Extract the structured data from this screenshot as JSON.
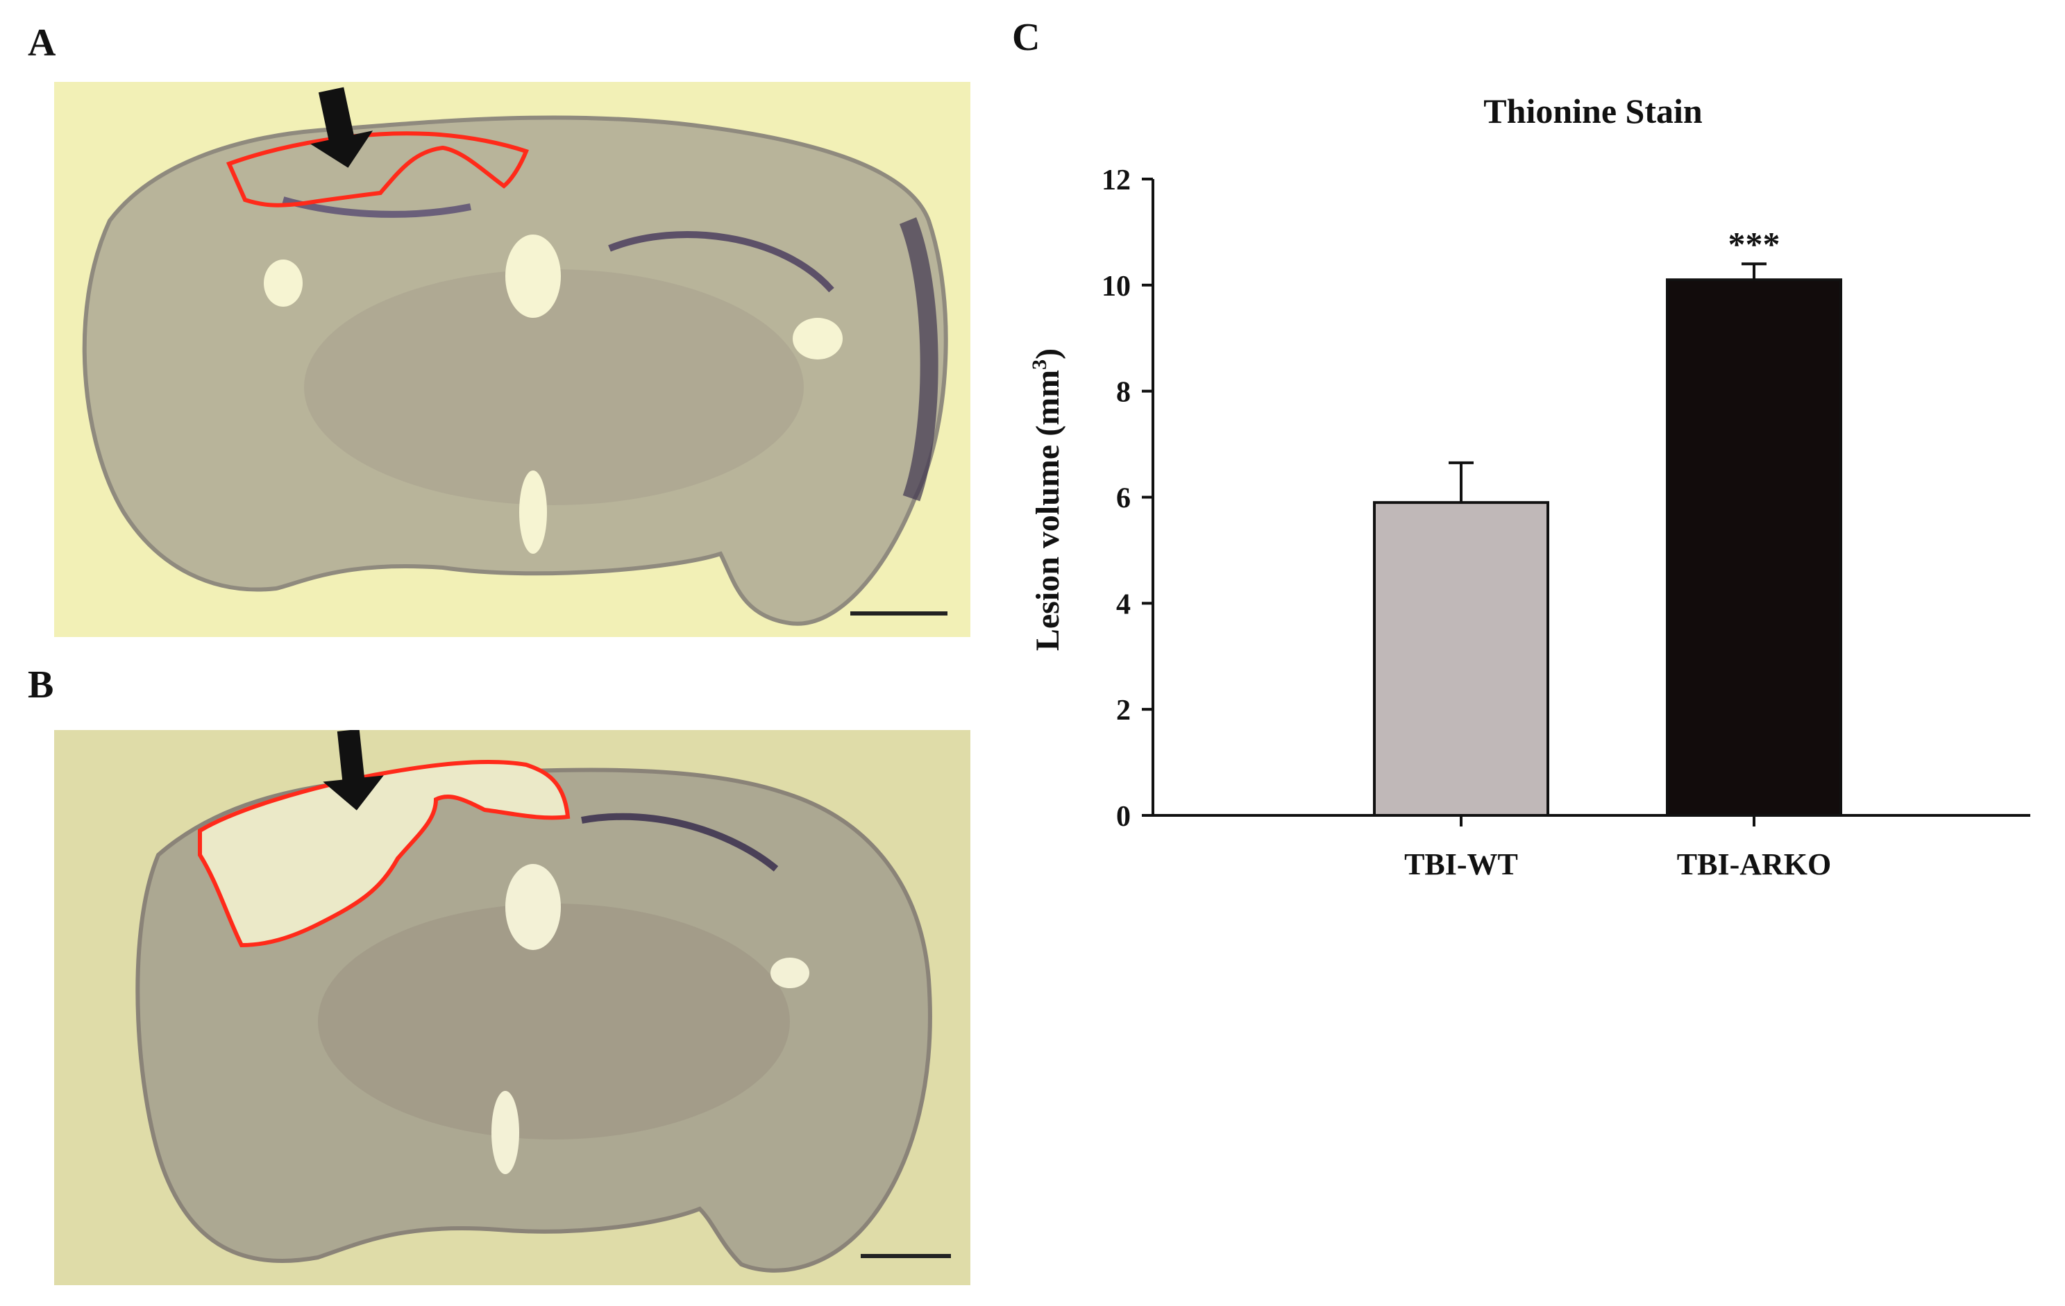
{
  "figure": {
    "panels": [
      {
        "id": "A",
        "label": "A",
        "description_hidden": "micrograph"
      },
      {
        "id": "B",
        "label": "B",
        "description_hidden": "micrograph"
      },
      {
        "id": "C",
        "label": "C"
      }
    ],
    "colors": {
      "panel_a_bg": "#f2f0b6",
      "panel_b_bg": "#dfdca8",
      "tissue": "#b8b49a",
      "tissue_dark": "#8f8a7e",
      "lesion_outline": "#ff2a1a",
      "arrow": "#111111",
      "bar_wt": "#c0b8b8",
      "bar_arko": "#120c0c"
    }
  },
  "chart_data": {
    "type": "bar",
    "title": "Thionine Stain",
    "xlabel": "",
    "ylabel": "Lesion volume (mm",
    "ylabel_superscript": "3",
    "ylabel_close": ")",
    "categories": [
      "TBI-WT",
      "TBI-ARKO"
    ],
    "values": [
      5.9,
      10.1
    ],
    "errors": [
      0.75,
      0.3
    ],
    "annotations": [
      "",
      "***"
    ],
    "ylim": [
      0,
      12
    ],
    "yticks": [
      0,
      2,
      4,
      6,
      8,
      10,
      12
    ],
    "grid": false
  }
}
